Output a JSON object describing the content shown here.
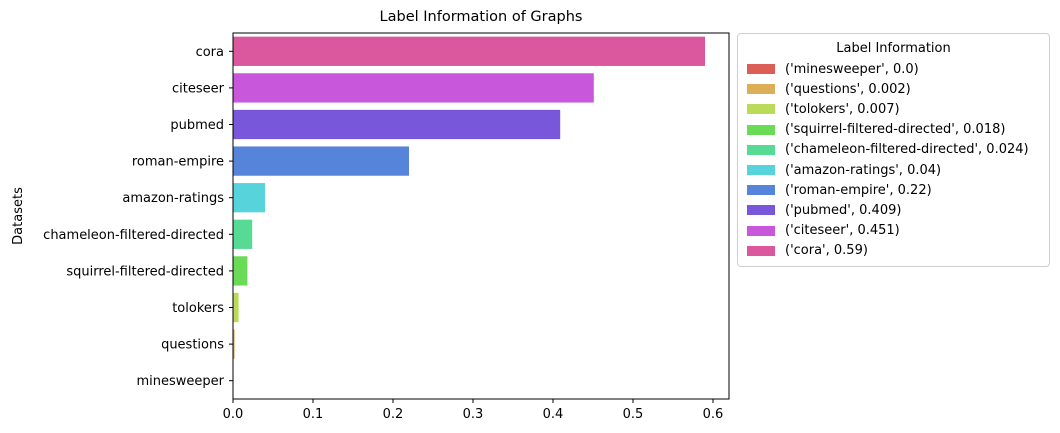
{
  "chart_data": {
    "type": "bar",
    "orientation": "horizontal",
    "title": "Label Information of Graphs",
    "xlabel": "",
    "ylabel": "Datasets",
    "xlim": [
      0,
      0.62
    ],
    "xticks": [
      "0.0",
      "0.1",
      "0.2",
      "0.3",
      "0.4",
      "0.5",
      "0.6"
    ],
    "grid": false,
    "legend_position": "outside-right",
    "categories": [
      "minesweeper",
      "questions",
      "tolokers",
      "squirrel-filtered-directed",
      "chameleon-filtered-directed",
      "amazon-ratings",
      "roman-empire",
      "pubmed",
      "citeseer",
      "cora"
    ],
    "values": [
      0.0,
      0.002,
      0.007,
      0.018,
      0.024,
      0.04,
      0.22,
      0.409,
      0.451,
      0.59
    ],
    "colors": [
      "#db5f57",
      "#dbae57",
      "#b9db57",
      "#69db57",
      "#57db94",
      "#57d3db",
      "#5784db",
      "#7957db",
      "#c957db",
      "#db579e"
    ]
  },
  "legend": {
    "title": "Label Information",
    "entries": [
      "('minesweeper', 0.0)",
      "('questions', 0.002)",
      "('tolokers', 0.007)",
      "('squirrel-filtered-directed', 0.018)",
      "('chameleon-filtered-directed', 0.024)",
      "('amazon-ratings', 0.04)",
      "('roman-empire', 0.22)",
      "('pubmed', 0.409)",
      "('citeseer', 0.451)",
      "('cora', 0.59)"
    ]
  }
}
